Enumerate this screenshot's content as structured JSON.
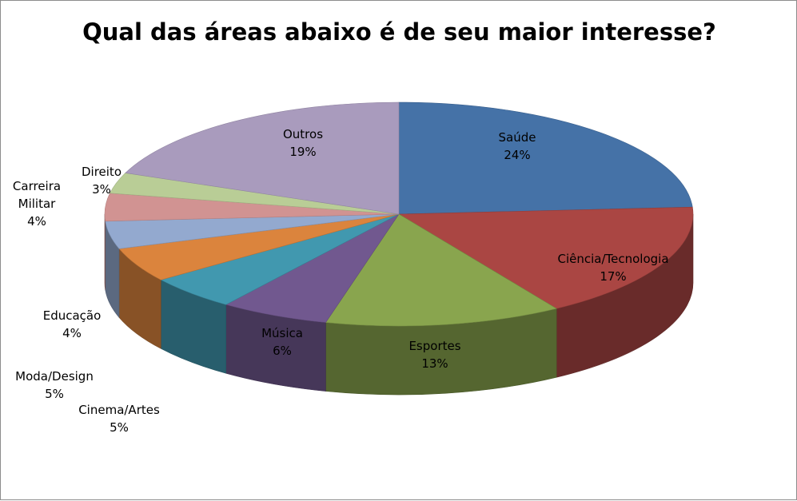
{
  "chart_data": {
    "type": "pie",
    "title": "Qual das áreas abaixo é de seu maior interesse?",
    "style": "3d",
    "slices": [
      {
        "label": "Saúde",
        "value": 24,
        "value_label": "24%",
        "color": "#4572a7"
      },
      {
        "label": "Ciência/Tecnologia",
        "value": 17,
        "value_label": "17%",
        "color": "#aa4643"
      },
      {
        "label": "Esportes",
        "value": 13,
        "value_label": "13%",
        "color": "#89a54e"
      },
      {
        "label": "Música",
        "value": 6,
        "value_label": "6%",
        "color": "#71588f"
      },
      {
        "label": "Cinema/Artes",
        "value": 5,
        "value_label": "5%",
        "color": "#4198af"
      },
      {
        "label": "Moda/Design",
        "value": 5,
        "value_label": "5%",
        "color": "#db843d"
      },
      {
        "label": "Educação",
        "value": 4,
        "value_label": "4%",
        "color": "#93a9cf"
      },
      {
        "label": "Carreira Militar",
        "value": 4,
        "value_label": "4%",
        "color": "#d19392"
      },
      {
        "label": "Direito",
        "value": 3,
        "value_label": "3%",
        "color": "#b9cd96"
      },
      {
        "label": "Outros",
        "value": 19,
        "value_label": "19%",
        "color": "#a99bbd"
      }
    ]
  }
}
